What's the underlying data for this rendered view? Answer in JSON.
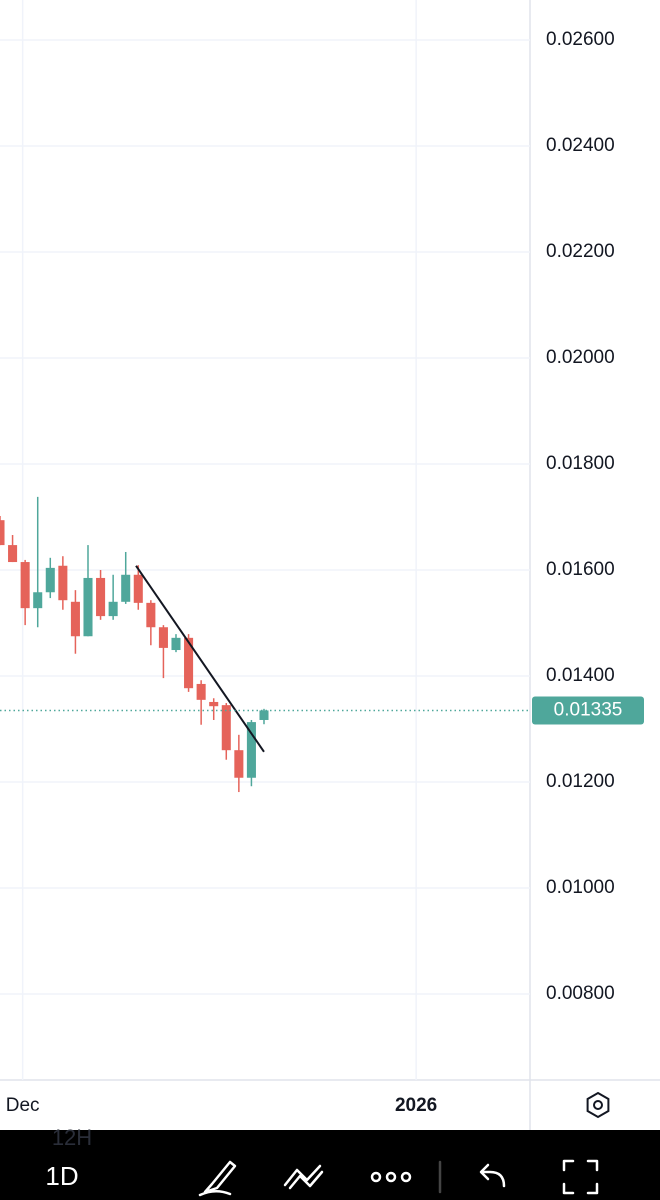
{
  "chart_data": {
    "type": "candlestick",
    "categories": [
      null,
      null,
      null,
      null,
      null,
      null,
      null,
      null,
      null,
      null,
      null,
      null,
      null,
      null,
      null,
      null,
      null,
      null,
      null,
      null,
      null,
      null
    ],
    "open": [
      0.01694,
      0.01647,
      0.01615,
      0.01528,
      0.01558,
      0.01608,
      0.0154,
      0.01475,
      0.01585,
      0.01513,
      0.0154,
      0.01591,
      0.01538,
      0.01492,
      0.01449,
      0.01472,
      0.01385,
      0.01351,
      0.01345,
      0.0126,
      0.01208,
      0.01317
    ],
    "high": [
      0.01702,
      0.01666,
      0.01619,
      0.01738,
      0.01623,
      0.01626,
      0.01562,
      0.01647,
      0.016,
      0.01591,
      0.01634,
      0.01609,
      0.01543,
      0.01496,
      0.01479,
      0.01479,
      0.01392,
      0.01358,
      0.01349,
      0.01289,
      0.01317,
      0.01338
    ],
    "low": [
      0.01647,
      0.01615,
      0.01496,
      0.01492,
      0.01547,
      0.01525,
      0.01442,
      0.01475,
      0.01506,
      0.01506,
      0.01536,
      0.01525,
      0.01458,
      0.01396,
      0.01445,
      0.0137,
      0.01308,
      0.01317,
      0.01242,
      0.01181,
      0.01192,
      0.01309
    ],
    "close": [
      0.01647,
      0.01615,
      0.01528,
      0.01558,
      0.01604,
      0.01543,
      0.01475,
      0.01585,
      0.01513,
      0.0154,
      0.01591,
      0.01538,
      0.01492,
      0.01453,
      0.01472,
      0.01377,
      0.01355,
      0.01343,
      0.0126,
      0.01208,
      0.01313,
      0.01335
    ],
    "up_color": "#4fa79b",
    "down_color": "#e5635a",
    "xlim": [
      0,
      42.16
    ],
    "xticks": [
      {
        "value": 1.8,
        "label": "Dec"
      },
      {
        "value": 33.1,
        "label": "2026"
      }
    ],
    "ylim": [
      0.006377,
      0.026755
    ],
    "yticks": [
      {
        "value": 0.008,
        "label": "0.00800"
      },
      {
        "value": 0.01,
        "label": "0.01000"
      },
      {
        "value": 0.012,
        "label": "0.01200"
      },
      {
        "value": 0.014,
        "label": "0.01400"
      },
      {
        "value": 0.016,
        "label": "0.01600"
      },
      {
        "value": 0.018,
        "label": "0.01800"
      },
      {
        "value": 0.02,
        "label": "0.02000"
      },
      {
        "value": 0.022,
        "label": "0.02200"
      },
      {
        "value": 0.024,
        "label": "0.02400"
      },
      {
        "value": 0.026,
        "label": "0.02600"
      }
    ],
    "grid": true,
    "price_line": {
      "value": 0.01335,
      "label": "0.01335",
      "color": "#4fa79b"
    },
    "trendline": {
      "x": [
        10.82,
        21.0
      ],
      "y": [
        0.01608,
        0.01257
      ]
    }
  },
  "toolbar": {
    "previous_interval": "12H",
    "interval": "1D"
  }
}
